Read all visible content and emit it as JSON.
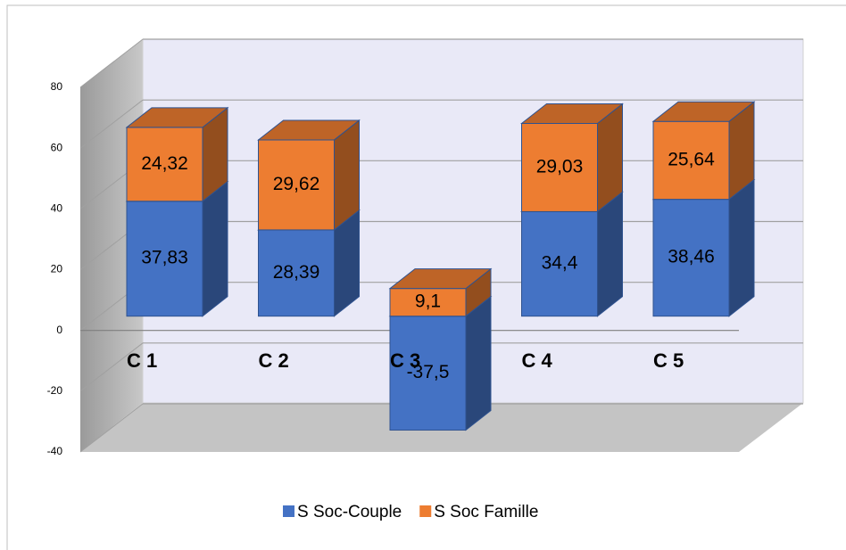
{
  "chart_data": {
    "type": "bar3d_stacked",
    "categories": [
      "C 1",
      "C 2",
      "C 3",
      "C 4",
      "C 5"
    ],
    "series": [
      {
        "name": "S Soc-Couple",
        "color": "#4472c4",
        "values": [
          37.83,
          28.39,
          -37.5,
          34.4,
          38.46
        ],
        "value_labels": [
          "37,83",
          "28,39",
          "-37,5",
          "34,4",
          "38,46"
        ]
      },
      {
        "name": "S Soc Famille",
        "color": "#ed7d31",
        "values": [
          24.32,
          29.62,
          9.1,
          29.03,
          25.64
        ],
        "value_labels": [
          "24,32",
          "29,62",
          "9,1",
          "29,03",
          "25,64"
        ]
      }
    ],
    "ylim": [
      -40,
      80
    ],
    "yticks": [
      -40,
      -20,
      0,
      20,
      40,
      60,
      80
    ],
    "grid": true,
    "legend": "bottom"
  }
}
